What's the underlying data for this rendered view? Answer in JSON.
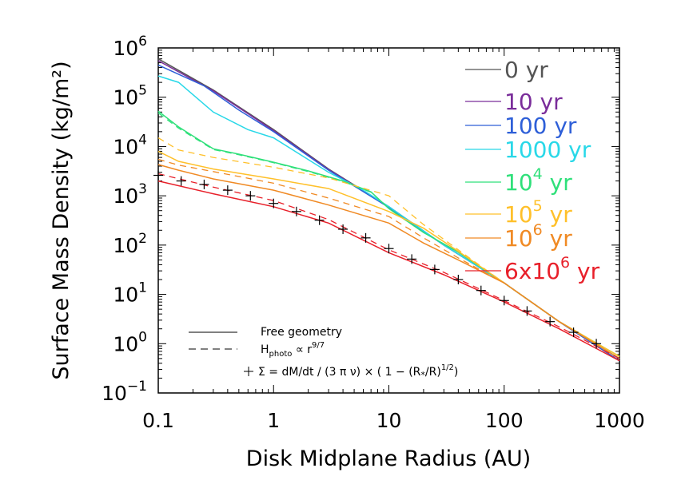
{
  "chart_data": {
    "type": "line",
    "xlabel": "Disk Midplane Radius (AU)",
    "ylabel": "Surface Mass Density (kg/m²)",
    "xscale": "log",
    "yscale": "log",
    "xlim": [
      0.1,
      1000
    ],
    "ylim": [
      0.1,
      1000000
    ],
    "x_ticks": [
      {
        "v": 0.1,
        "label": "0.1"
      },
      {
        "v": 1,
        "label": "1"
      },
      {
        "v": 10,
        "label": "10"
      },
      {
        "v": 100,
        "label": "100"
      },
      {
        "v": 1000,
        "label": "1000"
      }
    ],
    "y_ticks": [
      {
        "v": 0.1,
        "base": "10",
        "exp": "−1"
      },
      {
        "v": 1,
        "base": "10",
        "exp": "0"
      },
      {
        "v": 10,
        "base": "10",
        "exp": "1"
      },
      {
        "v": 100,
        "base": "10",
        "exp": "2"
      },
      {
        "v": 1000,
        "base": "10",
        "exp": "3"
      },
      {
        "v": 10000,
        "base": "10",
        "exp": "4"
      },
      {
        "v": 100000,
        "base": "10",
        "exp": "5"
      },
      {
        "v": 1000000,
        "base": "10",
        "exp": "6"
      }
    ],
    "legend_placement": "top-right",
    "series": [
      {
        "name": "0 yr",
        "label_main": "0 yr",
        "label_sup": "",
        "label_tail": "",
        "color": "#555555",
        "solid": [
          [
            0.1,
            600000
          ],
          [
            0.3,
            140000
          ],
          [
            1,
            22000
          ],
          [
            3,
            3500
          ],
          [
            10,
            600
          ],
          [
            30,
            100
          ],
          [
            100,
            17
          ],
          [
            300,
            2.8
          ],
          [
            1000,
            0.45
          ]
        ],
        "dashed": []
      },
      {
        "name": "10 yr",
        "label_main": "10 yr",
        "label_sup": "",
        "label_tail": "",
        "color": "#7a2d9a",
        "solid": [
          [
            0.1,
            550000
          ],
          [
            0.3,
            135000
          ],
          [
            1,
            21000
          ],
          [
            3,
            3400
          ],
          [
            10,
            590
          ],
          [
            30,
            100
          ],
          [
            100,
            17
          ],
          [
            300,
            2.8
          ],
          [
            1000,
            0.45
          ]
        ],
        "dashed": []
      },
      {
        "name": "100 yr",
        "label_main": "100 yr",
        "label_sup": "",
        "label_tail": "",
        "color": "#2e5fd8",
        "solid": [
          [
            0.1,
            450000
          ],
          [
            0.25,
            170000
          ],
          [
            0.5,
            55000
          ],
          [
            1,
            20000
          ],
          [
            3,
            3300
          ],
          [
            10,
            580
          ],
          [
            30,
            100
          ],
          [
            100,
            17
          ],
          [
            300,
            2.8
          ],
          [
            1000,
            0.45
          ]
        ],
        "dashed": []
      },
      {
        "name": "1000 yr",
        "label_main": "1000 yr",
        "label_sup": "",
        "label_tail": "",
        "color": "#29d8e8",
        "solid": [
          [
            0.1,
            270000
          ],
          [
            0.15,
            200000
          ],
          [
            0.3,
            50000
          ],
          [
            0.6,
            22000
          ],
          [
            1,
            15000
          ],
          [
            3,
            3000
          ],
          [
            6,
            1300
          ],
          [
            10,
            600
          ],
          [
            30,
            100
          ],
          [
            100,
            17
          ],
          [
            300,
            2.8
          ],
          [
            1000,
            0.5
          ]
        ],
        "dashed": []
      },
      {
        "name": "10^4 yr",
        "label_main": "10",
        "label_sup": "4",
        "label_tail": " yr",
        "color": "#2fe07a",
        "solid": [
          [
            0.1,
            52000
          ],
          [
            0.15,
            25000
          ],
          [
            0.3,
            9000
          ],
          [
            0.5,
            7000
          ],
          [
            1,
            4800
          ],
          [
            2,
            3200
          ],
          [
            4,
            2000
          ],
          [
            7,
            1200
          ],
          [
            10,
            550
          ],
          [
            20,
            180
          ],
          [
            40,
            72
          ],
          [
            100,
            17
          ],
          [
            300,
            2.8
          ],
          [
            1000,
            0.55
          ]
        ],
        "dashed": [
          [
            0.1,
            48000
          ],
          [
            0.15,
            23500
          ],
          [
            0.3,
            8700
          ],
          [
            0.5,
            6800
          ],
          [
            1,
            4700
          ],
          [
            2,
            3100
          ],
          [
            4,
            1950
          ],
          [
            7,
            1180
          ],
          [
            10,
            550
          ],
          [
            20,
            180
          ],
          [
            40,
            72
          ],
          [
            100,
            17
          ],
          [
            300,
            2.8
          ],
          [
            1000,
            0.55
          ]
        ]
      },
      {
        "name": "10^5 yr",
        "label_main": "10",
        "label_sup": "5",
        "label_tail": " yr",
        "color": "#ffc02a",
        "solid": [
          [
            0.1,
            8000
          ],
          [
            0.15,
            5000
          ],
          [
            0.3,
            3500
          ],
          [
            1,
            2200
          ],
          [
            3,
            1400
          ],
          [
            10,
            480
          ],
          [
            20,
            220
          ],
          [
            40,
            75
          ],
          [
            100,
            17
          ],
          [
            300,
            2.8
          ],
          [
            1000,
            0.55
          ]
        ],
        "dashed": [
          [
            0.1,
            15000
          ],
          [
            0.15,
            8500
          ],
          [
            0.3,
            6000
          ],
          [
            1,
            3800
          ],
          [
            3,
            2300
          ],
          [
            10,
            1000
          ],
          [
            20,
            260
          ],
          [
            40,
            80
          ],
          [
            100,
            17
          ],
          [
            300,
            2.8
          ],
          [
            1000,
            0.55
          ]
        ]
      },
      {
        "name": "10^6 yr",
        "label_main": "10",
        "label_sup": "6",
        "label_tail": " yr",
        "color": "#f08a24",
        "solid": [
          [
            0.1,
            4300
          ],
          [
            0.15,
            3300
          ],
          [
            0.3,
            2200
          ],
          [
            1,
            1300
          ],
          [
            3,
            650
          ],
          [
            10,
            280
          ],
          [
            20,
            110
          ],
          [
            40,
            50
          ],
          [
            100,
            17
          ],
          [
            300,
            2.8
          ],
          [
            1000,
            0.5
          ]
        ],
        "dashed": [
          [
            0.1,
            5500
          ],
          [
            0.15,
            4200
          ],
          [
            0.3,
            3100
          ],
          [
            1,
            1800
          ],
          [
            3,
            900
          ],
          [
            10,
            380
          ],
          [
            20,
            140
          ],
          [
            40,
            55
          ],
          [
            100,
            17
          ],
          [
            300,
            2.8
          ],
          [
            1000,
            0.5
          ]
        ]
      },
      {
        "name": "6x10^6 yr",
        "label_main": "6x10",
        "label_sup": "6",
        "label_tail": " yr",
        "color": "#e8202a",
        "solid": [
          [
            0.1,
            2000
          ],
          [
            0.3,
            1100
          ],
          [
            1,
            600
          ],
          [
            3,
            280
          ],
          [
            10,
            70
          ],
          [
            30,
            25
          ],
          [
            100,
            7
          ],
          [
            300,
            2
          ],
          [
            1000,
            0.45
          ]
        ],
        "dashed": [
          [
            0.1,
            2800
          ],
          [
            0.3,
            1500
          ],
          [
            1,
            800
          ],
          [
            3,
            330
          ],
          [
            10,
            80
          ],
          [
            30,
            28
          ],
          [
            100,
            7.5
          ],
          [
            300,
            2.2
          ],
          [
            1000,
            0.5
          ]
        ]
      }
    ],
    "analytic_points": {
      "name": "Σ = dM/dt / (3 π ν) × ( 1 − (R*/R)^1/2 )",
      "x": [
        0.1,
        0.158,
        0.25,
        0.4,
        0.63,
        1,
        1.58,
        2.5,
        4,
        6.3,
        10,
        15.8,
        25,
        40,
        63,
        100,
        158,
        250,
        400,
        630
      ],
      "y": [
        2600,
        2000,
        1700,
        1300,
        1000,
        700,
        480,
        320,
        210,
        140,
        85,
        52,
        32,
        20,
        12,
        7.5,
        4.6,
        2.8,
        1.7,
        1.0
      ]
    },
    "notes": {
      "free_geometry": "Free geometry",
      "h_photo_main": "H",
      "h_photo_sub": "photo",
      "h_photo_tail": " ∝ r",
      "h_photo_sup": "9/7",
      "sigma_main": "Σ = dM/dt / (3 π ν) × ( 1 − (R",
      "sigma_star": "*",
      "sigma_mid": "/R)",
      "sigma_sup": "1/2",
      "sigma_tail": ")"
    }
  }
}
